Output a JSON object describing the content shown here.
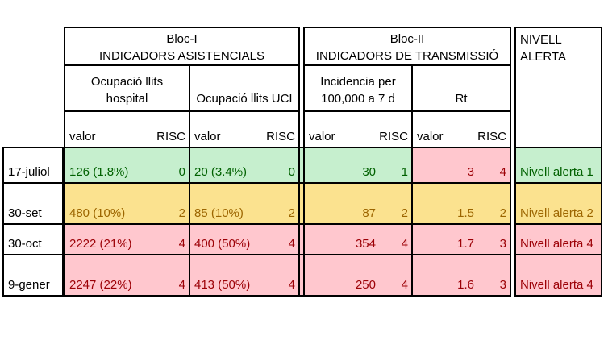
{
  "colors": {
    "green_bg": "#C6EFCE",
    "green_text": "#006100",
    "yellow_bg": "#FBE28F",
    "yellow_text": "#9C6500",
    "red_bg": "#FFC7CE",
    "red_text": "#9C0006",
    "border": "#000000",
    "page_bg": "#FFFFFF"
  },
  "blocks": {
    "bloc1": {
      "title_line1": "Bloc-I",
      "title_line2": "INDICADORS ASISTENCIALS",
      "col1_line1": "Ocupació llits",
      "col1_line2": "hospital",
      "col2": "Ocupació llits UCI"
    },
    "bloc2": {
      "title_line1": "Bloc-II",
      "title_line2": "INDICADORS DE TRANSMISSIÓ",
      "col1_line1": "Incidencia per",
      "col1_line2": "100,000 a 7 d",
      "col2": "Rt"
    },
    "nivell": {
      "line1": "NIVELL",
      "line2": "ALERTA"
    }
  },
  "labels": {
    "valor": "valor",
    "risc": "RISC"
  },
  "rows": [
    {
      "date": "17-juliol",
      "row_color": "green",
      "hospital_valor": "126 (1.8%)",
      "hospital_risc": "0",
      "uci_valor": "20 (3.4%)",
      "uci_risc": "0",
      "incidencia_valor": "30",
      "incidencia_risc": "1",
      "rt_valor": "3",
      "rt_risc": "4",
      "rt_color": "red",
      "alerta": "Nivell alerta 1"
    },
    {
      "date": "30-set",
      "row_color": "yellow",
      "hospital_valor": "480 (10%)",
      "hospital_risc": "2",
      "uci_valor": "85 (10%)",
      "uci_risc": "2",
      "incidencia_valor": "87",
      "incidencia_risc": "2",
      "rt_valor": "1.5",
      "rt_risc": "2",
      "rt_color": "yellow",
      "alerta": "Nivell alerta 2"
    },
    {
      "date": "30-oct",
      "row_color": "red",
      "hospital_valor": "2222 (21%)",
      "hospital_risc": "4",
      "uci_valor": "400 (50%)",
      "uci_risc": "4",
      "incidencia_valor": "354",
      "incidencia_risc": "4",
      "rt_valor": "1.7",
      "rt_risc": "3",
      "rt_color": "red",
      "alerta": "Nivell alerta 4"
    },
    {
      "date": "9-gener",
      "row_color": "red",
      "hospital_valor": "2247 (22%)",
      "hospital_risc": "4",
      "uci_valor": "413 (50%)",
      "uci_risc": "4",
      "incidencia_valor": "250",
      "incidencia_risc": "4",
      "rt_valor": "1.6",
      "rt_risc": "3",
      "rt_color": "red",
      "alerta": "Nivell alerta 4"
    }
  ]
}
